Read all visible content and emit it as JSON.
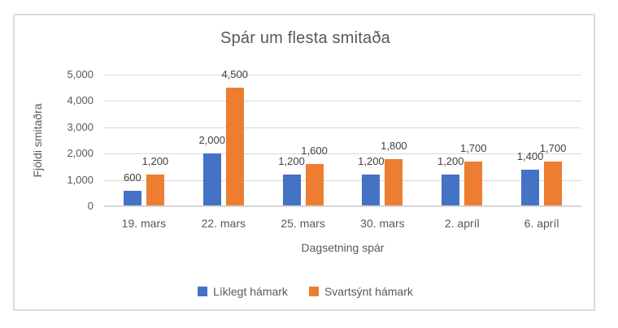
{
  "chart_data": {
    "type": "bar",
    "title": "Spár um flesta smitaða",
    "xlabel": "Dagsetning spár",
    "ylabel": "Fjöldi smitaðra",
    "categories": [
      "19. mars",
      "22. mars",
      "25. mars",
      "30. mars",
      "2. apríl",
      "6. apríl"
    ],
    "series": [
      {
        "name": "Líklegt hámark",
        "color": "#4472C4",
        "values": [
          600,
          2000,
          1200,
          1200,
          1200,
          1400
        ]
      },
      {
        "name": "Svartsýnt hámark",
        "color": "#ED7D31",
        "values": [
          1200,
          4500,
          1600,
          1800,
          1700,
          1700
        ]
      }
    ],
    "data_label_values": [
      [
        "600",
        "2,000",
        "1,200",
        "1,200",
        "1,200",
        "1,400"
      ],
      [
        "1,200",
        "4,500",
        "1,600",
        "1,800",
        "1,700",
        "1,700"
      ]
    ],
    "ylim": [
      0,
      5000
    ],
    "ytick_labels": [
      "0",
      "1,000",
      "2,000",
      "3,000",
      "4,000",
      "5,000"
    ],
    "ytick_values": [
      0,
      1000,
      2000,
      3000,
      4000,
      5000
    ],
    "grid": true,
    "legend_position": "bottom",
    "data_labels": true
  },
  "colors": {
    "axis_text": "#595959",
    "data_label_text": "#404040",
    "gridline": "#D9D9D9",
    "axis_line": "#D6D6D6",
    "frame_border": "#DBDBDB",
    "background": "#FFFFFF"
  }
}
